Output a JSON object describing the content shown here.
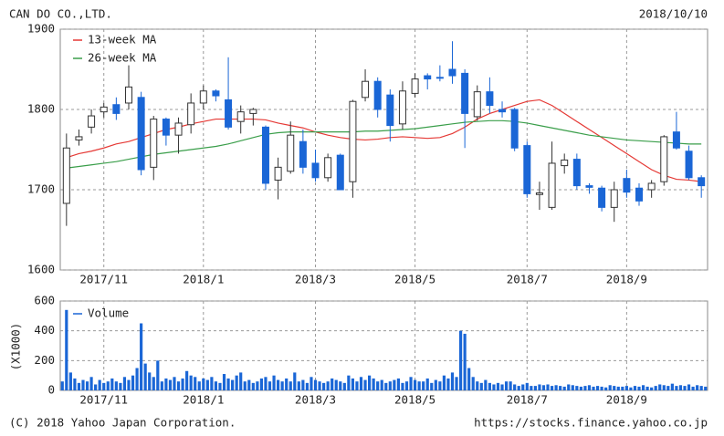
{
  "title": "CAN DO CO.,LTD.",
  "date": "2018/10/10",
  "copyright": "(C) 2018 Yahoo Japan Corporation.",
  "url": "https://stocks.finance.yahoo.co.jp",
  "chart_data": [
    {
      "type": "candlestick",
      "categories": [
        null,
        null,
        null,
        "2017/11",
        null,
        null,
        null,
        null,
        null,
        null,
        null,
        "2018/1",
        null,
        null,
        null,
        null,
        null,
        null,
        null,
        null,
        "2018/3",
        null,
        null,
        null,
        null,
        null,
        null,
        null,
        "2018/5",
        null,
        null,
        null,
        null,
        null,
        null,
        null,
        null,
        "2018/7",
        null,
        null,
        null,
        null,
        null,
        null,
        null,
        "2018/9",
        null,
        null,
        null,
        null,
        null,
        null
      ],
      "open": [
        1683,
        1762,
        1778,
        1797,
        1806,
        1808,
        1815,
        1728,
        1788,
        1768,
        1781,
        1808,
        1823,
        1812,
        1785,
        1795,
        1778,
        1712,
        1723,
        1760,
        1733,
        1715,
        1743,
        1710,
        1815,
        1835,
        1818,
        1782,
        1820,
        1842,
        1840,
        1850,
        1845,
        1791,
        1822,
        1800,
        1800,
        1755,
        1694,
        1678,
        1730,
        1738,
        1705,
        1702,
        1678,
        1714,
        1702,
        1700,
        1710,
        1772,
        1748,
        1715
      ],
      "high": [
        1770,
        1775,
        1800,
        1808,
        1815,
        1855,
        1822,
        1792,
        1790,
        1790,
        1820,
        1830,
        1825,
        1865,
        1805,
        1802,
        1780,
        1740,
        1785,
        1775,
        1750,
        1745,
        1745,
        1812,
        1850,
        1840,
        1825,
        1835,
        1845,
        1845,
        1855,
        1885,
        1850,
        1830,
        1840,
        1810,
        1802,
        1760,
        1710,
        1760,
        1745,
        1745,
        1708,
        1705,
        1710,
        1725,
        1708,
        1712,
        1768,
        1797,
        1755,
        1718
      ],
      "low": [
        1655,
        1755,
        1770,
        1790,
        1787,
        1800,
        1718,
        1712,
        1755,
        1745,
        1770,
        1800,
        1810,
        1775,
        1770,
        1780,
        1700,
        1688,
        1720,
        1720,
        1710,
        1710,
        1700,
        1690,
        1810,
        1790,
        1760,
        1775,
        1815,
        1825,
        1835,
        1832,
        1752,
        1786,
        1795,
        1790,
        1748,
        1690,
        1675,
        1675,
        1720,
        1700,
        1695,
        1673,
        1660,
        1690,
        1680,
        1690,
        1705,
        1750,
        1712,
        1690
      ],
      "close": [
        1752,
        1766,
        1792,
        1803,
        1795,
        1828,
        1725,
        1788,
        1768,
        1783,
        1808,
        1823,
        1817,
        1778,
        1797,
        1800,
        1708,
        1728,
        1768,
        1728,
        1715,
        1740,
        1700,
        1810,
        1835,
        1800,
        1780,
        1823,
        1838,
        1838,
        1839,
        1842,
        1795,
        1822,
        1805,
        1797,
        1752,
        1695,
        1696,
        1733,
        1737,
        1705,
        1703,
        1678,
        1700,
        1697,
        1686,
        1708,
        1766,
        1752,
        1715,
        1705
      ],
      "up_color": "#ffffff",
      "down_color": "#1a66d6",
      "series": [
        {
          "name": "13-week MA",
          "color": "#e53935",
          "values": [
            1740,
            1745,
            1748,
            1752,
            1757,
            1760,
            1765,
            1770,
            1775,
            1778,
            1782,
            1785,
            1788,
            1788,
            1788,
            1788,
            1787,
            1783,
            1780,
            1777,
            1772,
            1768,
            1765,
            1763,
            1762,
            1763,
            1765,
            1766,
            1765,
            1764,
            1765,
            1770,
            1778,
            1788,
            1795,
            1800,
            1805,
            1810,
            1812,
            1805,
            1795,
            1785,
            1775,
            1765,
            1755,
            1745,
            1735,
            1725,
            1718,
            1713,
            1712,
            1710
          ]
        },
        {
          "name": "26-week MA",
          "color": "#3a9e4a",
          "values": [
            1727,
            1729,
            1731,
            1733,
            1735,
            1738,
            1741,
            1744,
            1746,
            1748,
            1750,
            1752,
            1754,
            1757,
            1761,
            1765,
            1769,
            1771,
            1772,
            1772,
            1772,
            1772,
            1772,
            1772,
            1773,
            1773,
            1774,
            1775,
            1776,
            1778,
            1780,
            1782,
            1784,
            1785,
            1786,
            1786,
            1785,
            1783,
            1780,
            1777,
            1774,
            1771,
            1768,
            1766,
            1764,
            1762,
            1761,
            1760,
            1759,
            1758,
            1757,
            1757
          ]
        }
      ],
      "ylim": [
        1600,
        1900
      ],
      "yticks": [
        1600,
        1700,
        1800,
        1900
      ],
      "grid": true,
      "legend": "upper left"
    },
    {
      "type": "bar",
      "ylabel": "(X1000)",
      "series": [
        {
          "name": "Volume",
          "color": "#1a66d6",
          "values": [
            60,
            540,
            120,
            80,
            50,
            70,
            60,
            90,
            40,
            70,
            50,
            60,
            80,
            60,
            50,
            90,
            70,
            100,
            150,
            450,
            180,
            120,
            90,
            200,
            60,
            80,
            70,
            90,
            60,
            80,
            130,
            100,
            90,
            60,
            80,
            70,
            90,
            60,
            50,
            110,
            80,
            70,
            100,
            120,
            60,
            70,
            50,
            60,
            80,
            90,
            60,
            100,
            70,
            60,
            80,
            60,
            120,
            60,
            70,
            50,
            90,
            70,
            60,
            50,
            60,
            80,
            70,
            60,
            50,
            100,
            80,
            60,
            90,
            70,
            100,
            80,
            60,
            70,
            50,
            60,
            70,
            80,
            50,
            60,
            90,
            70,
            60,
            60,
            80,
            50,
            70,
            60,
            100,
            80,
            120,
            90,
            400,
            380,
            150,
            90,
            60,
            50,
            70,
            50,
            40,
            50,
            40,
            60,
            60,
            40,
            30,
            40,
            50,
            30,
            30,
            40,
            35,
            40,
            30,
            35,
            30,
            25,
            40,
            35,
            30,
            25,
            30,
            35,
            25,
            30,
            25,
            20,
            35,
            30,
            25,
            25,
            30,
            20,
            30,
            25,
            35,
            25,
            20,
            30,
            40,
            35,
            30,
            45,
            30,
            35,
            30,
            40,
            25,
            35,
            30,
            25
          ]
        }
      ],
      "ylim": [
        0,
        600
      ],
      "yticks": [
        0,
        200,
        400,
        600
      ],
      "grid": true,
      "legend": "upper left"
    }
  ]
}
